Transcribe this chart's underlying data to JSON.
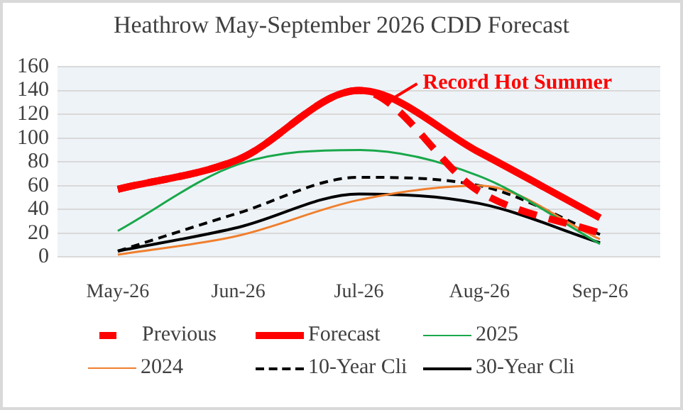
{
  "chart_data": {
    "type": "line",
    "title": "Heathrow May-September 2026 CDD Forecast",
    "categories": [
      "May-26",
      "Jun-26",
      "Jul-26",
      "Aug-26",
      "Sep-26"
    ],
    "series": [
      {
        "name": "Previous",
        "color": "#ff0000",
        "line_style": "dashed",
        "values": [
          57,
          82,
          140,
          55,
          20
        ]
      },
      {
        "name": "Forecast",
        "color": "#ff0000",
        "line_style": "solid",
        "values": [
          57,
          82,
          140,
          88,
          33
        ]
      },
      {
        "name": "2025",
        "color": "#18a84a",
        "line_style": "solid",
        "values": [
          22,
          78,
          90,
          68,
          11
        ]
      },
      {
        "name": "2024",
        "color": "#f07f2d",
        "line_style": "solid",
        "values": [
          2,
          18,
          48,
          60,
          15
        ]
      },
      {
        "name": "10-Year Cli",
        "color": "#000000",
        "line_style": "dashed",
        "values": [
          5,
          37,
          67,
          60,
          19
        ]
      },
      {
        "name": "30-Year Cli",
        "color": "#000000",
        "line_style": "solid",
        "values": [
          5,
          25,
          53,
          45,
          12
        ]
      }
    ],
    "ylim": [
      0,
      160
    ],
    "yticks": [
      0,
      20,
      40,
      60,
      80,
      100,
      120,
      140,
      160
    ],
    "grid": "y",
    "legend": "bottom",
    "marker": "none",
    "annotations": [
      {
        "text": "Record Hot Summer",
        "x": "Jul-26",
        "y": 140
      }
    ]
  }
}
